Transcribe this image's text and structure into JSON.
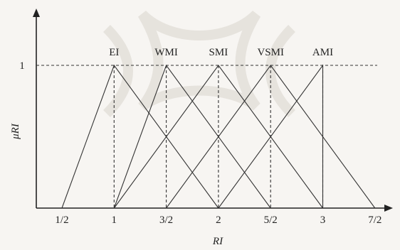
{
  "chart_data": {
    "type": "line",
    "title": "",
    "xlabel": "RI",
    "ylabel": "μRI",
    "x_ticks": [
      "1/2",
      "1",
      "3/2",
      "2",
      "5/2",
      "3",
      "7/2"
    ],
    "y_ticks": [
      "1"
    ],
    "xlim": [
      0.5,
      3.5
    ],
    "ylim": [
      0,
      1
    ],
    "series": [
      {
        "name": "EI",
        "x": [
          0.5,
          1.0,
          2.0
        ],
        "y": [
          0,
          1,
          0
        ]
      },
      {
        "name": "WMI",
        "x": [
          1.0,
          1.5,
          2.5
        ],
        "y": [
          0,
          1,
          0
        ]
      },
      {
        "name": "SMI",
        "x": [
          1.0,
          2.0,
          3.0
        ],
        "y": [
          0,
          1,
          0
        ]
      },
      {
        "name": "VSMI",
        "x": [
          1.5,
          2.5,
          3.5
        ],
        "y": [
          0,
          1,
          0
        ]
      },
      {
        "name": "AMI",
        "x": [
          2.0,
          3.0,
          3.0
        ],
        "y": [
          0,
          1,
          0
        ]
      }
    ]
  }
}
